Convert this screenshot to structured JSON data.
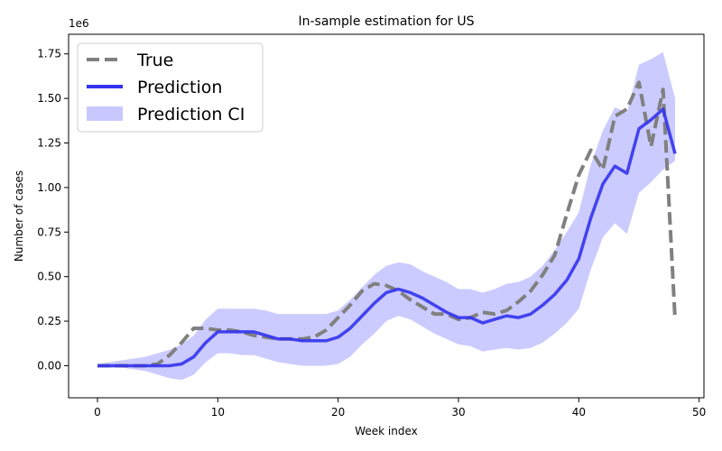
{
  "chart_data": {
    "type": "line",
    "title": "In-sample estimation for US",
    "xlabel": "Week index",
    "ylabel": "Number of cases",
    "y_scale_label": "1e6",
    "xlim": [
      -2.4,
      50.4
    ],
    "ylim": [
      -0.18,
      1.86
    ],
    "x_ticks": [
      0,
      10,
      20,
      30,
      40,
      50
    ],
    "y_ticks": [
      0.0,
      0.25,
      0.5,
      0.75,
      1.0,
      1.25,
      1.5,
      1.75
    ],
    "y_tick_labels": [
      "0.00",
      "0.25",
      "0.50",
      "0.75",
      "1.00",
      "1.25",
      "1.50",
      "1.75"
    ],
    "grid": false,
    "legend_position": "top-left",
    "colors": {
      "true": "#808080",
      "prediction": "#3333ee",
      "ci": "#c8c8ff"
    },
    "x": [
      0,
      1,
      2,
      3,
      4,
      5,
      6,
      7,
      8,
      9,
      10,
      11,
      12,
      13,
      14,
      15,
      16,
      17,
      18,
      19,
      20,
      21,
      22,
      23,
      24,
      25,
      26,
      27,
      28,
      29,
      30,
      31,
      32,
      33,
      34,
      35,
      36,
      37,
      38,
      39,
      40,
      41,
      42,
      43,
      44,
      45,
      46,
      47,
      48
    ],
    "series": [
      {
        "name": "True",
        "style": "dashed",
        "values": [
          0.0,
          0.0,
          0.0,
          0.0,
          0.0,
          0.01,
          0.06,
          0.13,
          0.21,
          0.21,
          0.2,
          0.2,
          0.19,
          0.17,
          0.16,
          0.15,
          0.15,
          0.15,
          0.16,
          0.2,
          0.27,
          0.34,
          0.42,
          0.46,
          0.45,
          0.42,
          0.37,
          0.33,
          0.29,
          0.29,
          0.26,
          0.27,
          0.3,
          0.29,
          0.31,
          0.36,
          0.42,
          0.51,
          0.62,
          0.85,
          1.07,
          1.21,
          1.1,
          1.4,
          1.44,
          1.59,
          1.23,
          1.55,
          0.26
        ]
      },
      {
        "name": "Prediction",
        "style": "solid",
        "values": [
          0.0,
          0.0,
          0.0,
          0.0,
          0.0,
          0.0,
          0.0,
          0.01,
          0.05,
          0.13,
          0.19,
          0.19,
          0.19,
          0.19,
          0.17,
          0.15,
          0.15,
          0.14,
          0.14,
          0.14,
          0.16,
          0.21,
          0.28,
          0.35,
          0.41,
          0.43,
          0.41,
          0.38,
          0.34,
          0.3,
          0.27,
          0.27,
          0.24,
          0.26,
          0.28,
          0.27,
          0.29,
          0.34,
          0.4,
          0.48,
          0.6,
          0.83,
          1.02,
          1.12,
          1.08,
          1.33,
          1.38,
          1.44,
          1.19
        ]
      }
    ],
    "ci": {
      "name": "Prediction CI",
      "lower": [
        -0.01,
        -0.01,
        -0.01,
        -0.02,
        -0.03,
        -0.05,
        -0.07,
        -0.08,
        -0.05,
        0.02,
        0.07,
        0.07,
        0.06,
        0.06,
        0.04,
        0.02,
        0.01,
        0.0,
        0.0,
        0.0,
        0.01,
        0.05,
        0.12,
        0.18,
        0.25,
        0.28,
        0.26,
        0.22,
        0.18,
        0.15,
        0.12,
        0.11,
        0.08,
        0.09,
        0.1,
        0.09,
        0.1,
        0.13,
        0.18,
        0.24,
        0.32,
        0.54,
        0.72,
        0.8,
        0.74,
        0.97,
        1.03,
        1.1,
        1.15
      ],
      "upper": [
        0.01,
        0.02,
        0.03,
        0.04,
        0.05,
        0.07,
        0.09,
        0.12,
        0.17,
        0.26,
        0.32,
        0.32,
        0.32,
        0.32,
        0.31,
        0.29,
        0.29,
        0.29,
        0.29,
        0.29,
        0.31,
        0.37,
        0.44,
        0.51,
        0.56,
        0.58,
        0.57,
        0.53,
        0.5,
        0.47,
        0.43,
        0.43,
        0.41,
        0.43,
        0.46,
        0.47,
        0.5,
        0.56,
        0.65,
        0.75,
        0.86,
        1.13,
        1.32,
        1.45,
        1.42,
        1.69,
        1.72,
        1.76,
        1.5
      ]
    }
  }
}
